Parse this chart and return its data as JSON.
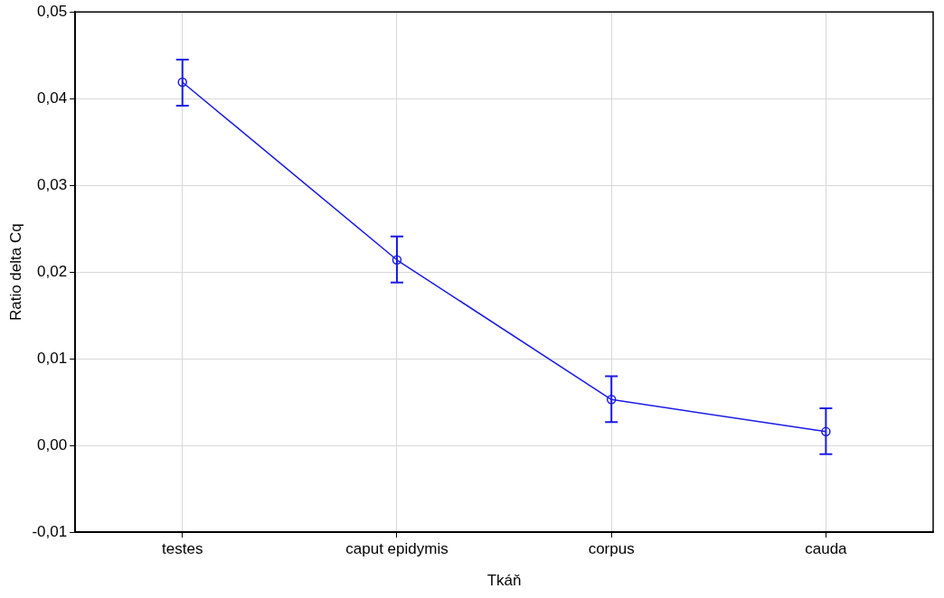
{
  "chart_data": {
    "type": "line",
    "xlabel": "Tkáň",
    "ylabel": "Ratio delta Cq",
    "categories": [
      "testes",
      "caput epidymis",
      "corpus",
      "cauda"
    ],
    "series": [
      {
        "color": "#1a1ae6",
        "values": [
          0.0419,
          0.0214,
          0.0053,
          0.0016
        ],
        "errors": [
          [
            0.0392,
            0.0445
          ],
          [
            0.0188,
            0.0241
          ],
          [
            0.0027,
            0.008
          ],
          [
            -0.001,
            0.0043
          ]
        ]
      }
    ],
    "ylim": [
      -0.01,
      0.05
    ],
    "yticks": [
      {
        "value": -0.01,
        "label": "-0,01"
      },
      {
        "value": 0,
        "label": "0,00"
      },
      {
        "value": 0.01,
        "label": "0,01"
      },
      {
        "value": 0.02,
        "label": "0,02"
      },
      {
        "value": 0.03,
        "label": "0,03"
      },
      {
        "value": 0.04,
        "label": "0,04"
      },
      {
        "value": 0.05,
        "label": "0,05"
      }
    ],
    "grid": true,
    "legend": false,
    "marker": "circle",
    "line_style": "solid"
  }
}
